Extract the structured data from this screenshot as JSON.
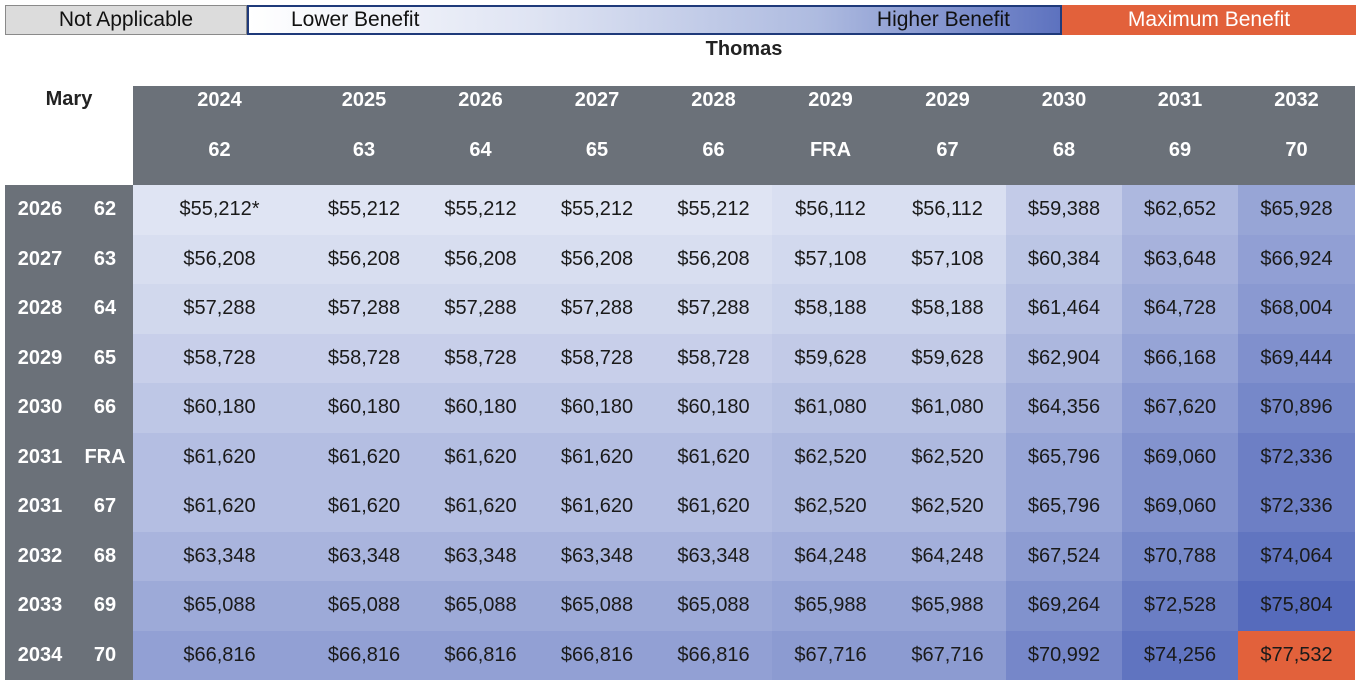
{
  "legend": {
    "not_applicable": "Not Applicable",
    "lower": "Lower Benefit",
    "higher": "Higher Benefit",
    "maximum": "Maximum Benefit"
  },
  "chart_data": {
    "type": "heatmap",
    "column_title": "Thomas",
    "row_title": "Mary",
    "columns": [
      {
        "year": "2024",
        "age": "62"
      },
      {
        "year": "2025",
        "age": "63"
      },
      {
        "year": "2026",
        "age": "64"
      },
      {
        "year": "2027",
        "age": "65"
      },
      {
        "year": "2028",
        "age": "66"
      },
      {
        "year": "2029",
        "age": "FRA"
      },
      {
        "year": "2029",
        "age": "67"
      },
      {
        "year": "2030",
        "age": "68"
      },
      {
        "year": "2031",
        "age": "69"
      },
      {
        "year": "2032",
        "age": "70"
      }
    ],
    "rows": [
      {
        "year": "2026",
        "age": "62",
        "values": [
          "$55,212*",
          "$55,212",
          "$55,212",
          "$55,212",
          "$55,212",
          "$56,112",
          "$56,112",
          "$59,388",
          "$62,652",
          "$65,928"
        ]
      },
      {
        "year": "2027",
        "age": "63",
        "values": [
          "$56,208",
          "$56,208",
          "$56,208",
          "$56,208",
          "$56,208",
          "$57,108",
          "$57,108",
          "$60,384",
          "$63,648",
          "$66,924"
        ]
      },
      {
        "year": "2028",
        "age": "64",
        "values": [
          "$57,288",
          "$57,288",
          "$57,288",
          "$57,288",
          "$57,288",
          "$58,188",
          "$58,188",
          "$61,464",
          "$64,728",
          "$68,004"
        ]
      },
      {
        "year": "2029",
        "age": "65",
        "values": [
          "$58,728",
          "$58,728",
          "$58,728",
          "$58,728",
          "$58,728",
          "$59,628",
          "$59,628",
          "$62,904",
          "$66,168",
          "$69,444"
        ]
      },
      {
        "year": "2030",
        "age": "66",
        "values": [
          "$60,180",
          "$60,180",
          "$60,180",
          "$60,180",
          "$60,180",
          "$61,080",
          "$61,080",
          "$64,356",
          "$67,620",
          "$70,896"
        ]
      },
      {
        "year": "2031",
        "age": "FRA",
        "values": [
          "$61,620",
          "$61,620",
          "$61,620",
          "$61,620",
          "$61,620",
          "$62,520",
          "$62,520",
          "$65,796",
          "$69,060",
          "$72,336"
        ]
      },
      {
        "year": "2031",
        "age": "67",
        "values": [
          "$61,620",
          "$61,620",
          "$61,620",
          "$61,620",
          "$61,620",
          "$62,520",
          "$62,520",
          "$65,796",
          "$69,060",
          "$72,336"
        ]
      },
      {
        "year": "2032",
        "age": "68",
        "values": [
          "$63,348",
          "$63,348",
          "$63,348",
          "$63,348",
          "$63,348",
          "$64,248",
          "$64,248",
          "$67,524",
          "$70,788",
          "$74,064"
        ]
      },
      {
        "year": "2033",
        "age": "69",
        "values": [
          "$65,088",
          "$65,088",
          "$65,088",
          "$65,088",
          "$65,088",
          "$65,988",
          "$65,988",
          "$69,264",
          "$72,528",
          "$75,804"
        ]
      },
      {
        "year": "2034",
        "age": "70",
        "values": [
          "$66,816",
          "$66,816",
          "$66,816",
          "$66,816",
          "$66,816",
          "$67,716",
          "$67,716",
          "$70,992",
          "$74,256",
          "$77,532"
        ]
      }
    ],
    "color_scale": {
      "low": "#dfe4f3",
      "high": "#4a61b7",
      "maximum": "#e2613b",
      "not_applicable": "#dcdcdc"
    }
  }
}
